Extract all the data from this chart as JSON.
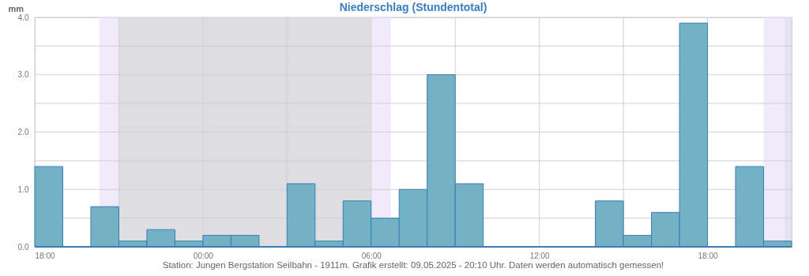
{
  "chart_data": {
    "type": "histogram",
    "title": "Niederschlag (Stundentotal)",
    "ylabel": "mm",
    "bins": [
      "2025-05-08T18:00",
      "2025-05-08T19:00",
      "2025-05-08T20:00",
      "2025-05-08T21:00",
      "2025-05-08T22:00",
      "2025-05-08T23:00",
      "2025-05-09T00:00",
      "2025-05-09T01:00",
      "2025-05-09T02:00",
      "2025-05-09T03:00",
      "2025-05-09T04:00",
      "2025-05-09T05:00",
      "2025-05-09T06:00",
      "2025-05-09T07:00",
      "2025-05-09T08:00",
      "2025-05-09T09:00",
      "2025-05-09T10:00",
      "2025-05-09T11:00",
      "2025-05-09T12:00",
      "2025-05-09T13:00",
      "2025-05-09T14:00",
      "2025-05-09T15:00",
      "2025-05-09T16:00",
      "2025-05-09T17:00",
      "2025-05-09T18:00",
      "2025-05-09T19:00",
      "2025-05-09T20:00",
      "2025-05-09T21:00"
    ],
    "values": [
      1.4,
      0,
      0.7,
      0.1,
      0.3,
      0.1,
      0.2,
      0.2,
      0,
      1.1,
      0.1,
      0.8,
      0.5,
      1.0,
      3.0,
      1.1,
      0,
      0,
      0,
      0,
      0.8,
      0.2,
      0.6,
      3.9,
      0,
      1.4,
      0.1
    ],
    "color": "#73b1c5",
    "xlim": [
      "2025-05-08T18:00",
      "2025-05-09T21:00"
    ],
    "xticks": [
      {
        "value": "2025-05-08T18:00",
        "label": "18:00"
      },
      {
        "value": "2025-05-08T21:00",
        "label": null
      },
      {
        "value": "2025-05-09T00:00",
        "label": "00:00"
      },
      {
        "value": "2025-05-09T03:00",
        "label": null
      },
      {
        "value": "2025-05-09T06:00",
        "label": "06:00"
      },
      {
        "value": "2025-05-09T09:00",
        "label": null
      },
      {
        "value": "2025-05-09T12:00",
        "label": "12:00"
      },
      {
        "value": "2025-05-09T15:00",
        "label": null
      },
      {
        "value": "2025-05-09T18:00",
        "label": "18:00"
      }
    ],
    "ylim": [
      0,
      4
    ],
    "yticks": [
      {
        "value": 0,
        "label": "0.0"
      },
      {
        "value": 0.5,
        "label": null
      },
      {
        "value": 1,
        "label": "1.0"
      },
      {
        "value": 1.5,
        "label": null
      },
      {
        "value": 2,
        "label": "2.0"
      },
      {
        "value": 2.5,
        "label": null
      },
      {
        "value": 3,
        "label": "3.0"
      },
      {
        "value": 3.5,
        "label": null
      },
      {
        "value": 4,
        "label": "4.0"
      }
    ],
    "grid": true,
    "bands": [
      {
        "axis": "x",
        "from": "2025-05-08T20:18",
        "to": "2025-05-08T21:00",
        "color": "#f0eafa"
      },
      {
        "axis": "x",
        "from": "2025-05-08T21:00",
        "to": "2025-05-09T06:00",
        "color": "#dedee2"
      },
      {
        "axis": "x",
        "from": "2025-05-09T06:00",
        "to": "2025-05-09T06:42",
        "color": "#f0eafa"
      },
      {
        "axis": "x",
        "from": "2025-05-09T20:00",
        "to": "2025-05-09T20:45",
        "color": "#f0eafa"
      },
      {
        "axis": "x",
        "from": "2025-05-09T20:45",
        "to": "2025-05-09T21:00",
        "color": "#e6e2f2"
      }
    ],
    "annotations": [
      "Station: Jungen Bergstation Seilbahn - 1911m. Grafik erstellt: 09.05.2025 - 20:10 Uhr. Daten werden automatisch gemessen!"
    ]
  }
}
